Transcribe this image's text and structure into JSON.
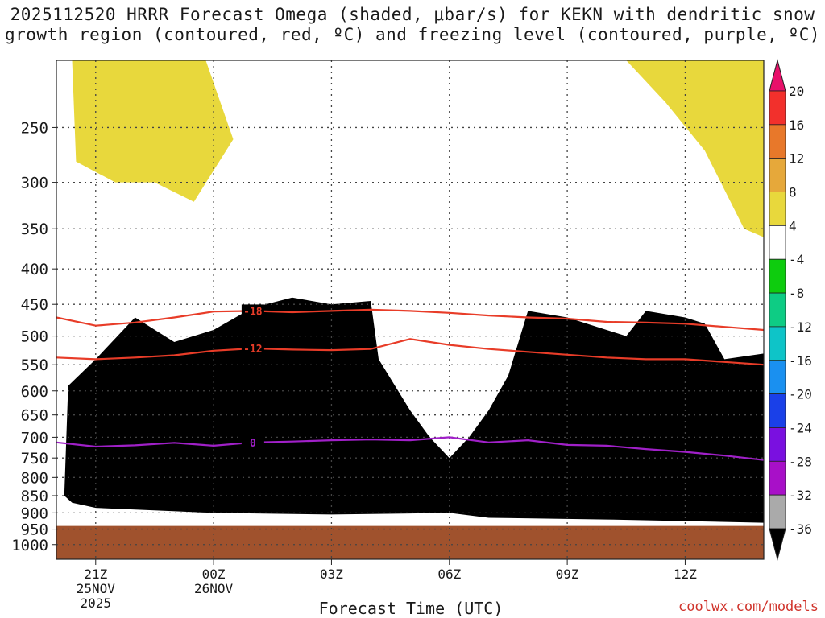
{
  "title_line1": "2025112520 HRRR Forecast Omega (shaded, μbar/s) for KEKN with dendritic snow",
  "title_line2": "growth region (contoured, red, ºC) and freezing level (contoured, purple, ºC)",
  "credit": "coolwx.com/models",
  "chart_data": {
    "type": "time-height contour",
    "xlabel": "Forecast Time (UTC)",
    "ylabel": "",
    "x_ticks": [
      {
        "label": "21Z",
        "sub1": "25NOV",
        "sub2": "2025",
        "hour": 0
      },
      {
        "label": "00Z",
        "sub1": "26NOV",
        "sub2": "",
        "hour": 3
      },
      {
        "label": "03Z",
        "sub1": "",
        "sub2": "",
        "hour": 6
      },
      {
        "label": "06Z",
        "sub1": "",
        "sub2": "",
        "hour": 9
      },
      {
        "label": "09Z",
        "sub1": "",
        "sub2": "",
        "hour": 12
      },
      {
        "label": "12Z",
        "sub1": "",
        "sub2": "",
        "hour": 15
      }
    ],
    "x_range": [
      -1,
      17
    ],
    "y_ticks": [
      250,
      300,
      350,
      400,
      450,
      500,
      550,
      600,
      650,
      700,
      750,
      800,
      850,
      900,
      950,
      1000
    ],
    "y_range_hpa": [
      1050,
      200
    ],
    "surface_below_hpa": 940,
    "colorbar": {
      "units": "μbar/s",
      "labels": [
        "20",
        "16",
        "12",
        "8",
        "4",
        "-4",
        "-8",
        "-12",
        "-16",
        "-20",
        "-24",
        "-28",
        "-32",
        "-36"
      ],
      "colors": [
        "#e8106a",
        "#f2302c",
        "#e8782a",
        "#e6a83a",
        "#e8d83c",
        "#ffffff",
        "#0ecc0e",
        "#0ecc84",
        "#0ec4c8",
        "#1a90f0",
        "#1a40e8",
        "#7a10e0",
        "#a810c8",
        "#aaaaaa",
        "#000000"
      ]
    },
    "contours": [
      {
        "name": "-18",
        "color": "#e83c28",
        "points": [
          [
            -1,
            470
          ],
          [
            0,
            483
          ],
          [
            1,
            478
          ],
          [
            2,
            470
          ],
          [
            3,
            461
          ],
          [
            4,
            460
          ],
          [
            5,
            462
          ],
          [
            6,
            460
          ],
          [
            7,
            458
          ],
          [
            8,
            460
          ],
          [
            9,
            463
          ],
          [
            10,
            467
          ],
          [
            11,
            470
          ],
          [
            12,
            472
          ],
          [
            13,
            477
          ],
          [
            14,
            478
          ],
          [
            15,
            480
          ],
          [
            16,
            485
          ],
          [
            17,
            490
          ]
        ]
      },
      {
        "name": "-12",
        "color": "#e83c28",
        "points": [
          [
            -1,
            537
          ],
          [
            0,
            540
          ],
          [
            1,
            537
          ],
          [
            2,
            533
          ],
          [
            3,
            525
          ],
          [
            4,
            521
          ],
          [
            5,
            523
          ],
          [
            6,
            524
          ],
          [
            7,
            522
          ],
          [
            8,
            505
          ],
          [
            9,
            515
          ],
          [
            10,
            522
          ],
          [
            11,
            527
          ],
          [
            12,
            532
          ],
          [
            13,
            537
          ],
          [
            14,
            540
          ],
          [
            15,
            540
          ],
          [
            16,
            545
          ],
          [
            17,
            550
          ]
        ]
      },
      {
        "name": "0",
        "color": "#a020c8",
        "points": [
          [
            -1,
            712
          ],
          [
            0,
            722
          ],
          [
            1,
            719
          ],
          [
            2,
            713
          ],
          [
            3,
            720
          ],
          [
            4,
            712
          ],
          [
            5,
            710
          ],
          [
            6,
            707
          ],
          [
            7,
            705
          ],
          [
            8,
            707
          ],
          [
            9,
            700
          ],
          [
            10,
            712
          ],
          [
            11,
            707
          ],
          [
            12,
            718
          ],
          [
            13,
            720
          ],
          [
            14,
            728
          ],
          [
            15,
            735
          ],
          [
            16,
            744
          ],
          [
            17,
            755
          ]
        ]
      }
    ],
    "omega_regions": [
      {
        "value": -36,
        "color": "#000000",
        "polygon": [
          [
            -0.8,
            850
          ],
          [
            -0.7,
            590
          ],
          [
            0,
            540
          ],
          [
            1,
            470
          ],
          [
            2,
            510
          ],
          [
            3,
            490
          ],
          [
            4,
            455
          ],
          [
            5,
            440
          ],
          [
            6,
            450
          ],
          [
            7,
            445
          ],
          [
            7.2,
            540
          ],
          [
            8,
            640
          ],
          [
            8.5,
            700
          ],
          [
            9,
            750
          ],
          [
            9.5,
            700
          ],
          [
            10,
            640
          ],
          [
            10.5,
            570
          ],
          [
            11,
            460
          ],
          [
            12,
            470
          ],
          [
            13,
            490
          ],
          [
            13.5,
            500
          ],
          [
            14,
            460
          ],
          [
            15,
            470
          ],
          [
            15.5,
            480
          ],
          [
            16,
            540
          ],
          [
            17,
            530
          ],
          [
            17,
            930
          ],
          [
            13,
            920
          ],
          [
            10,
            915
          ],
          [
            9,
            900
          ],
          [
            6,
            905
          ],
          [
            3,
            900
          ],
          [
            0,
            885
          ],
          [
            -0.6,
            870
          ]
        ]
      },
      {
        "value": 4,
        "color": "#e8d83c",
        "polygon": [
          [
            -0.6,
            200
          ],
          [
            2.8,
            200
          ],
          [
            3.5,
            260
          ],
          [
            2.5,
            320
          ],
          [
            1.5,
            300
          ],
          [
            0.5,
            300
          ],
          [
            -0.5,
            280
          ]
        ]
      },
      {
        "value": 4,
        "color": "#e8d83c",
        "polygon": [
          [
            13.5,
            200
          ],
          [
            17,
            200
          ],
          [
            17,
            360
          ],
          [
            16.5,
            350
          ],
          [
            15.5,
            270
          ],
          [
            14.5,
            230
          ]
        ]
      }
    ]
  }
}
